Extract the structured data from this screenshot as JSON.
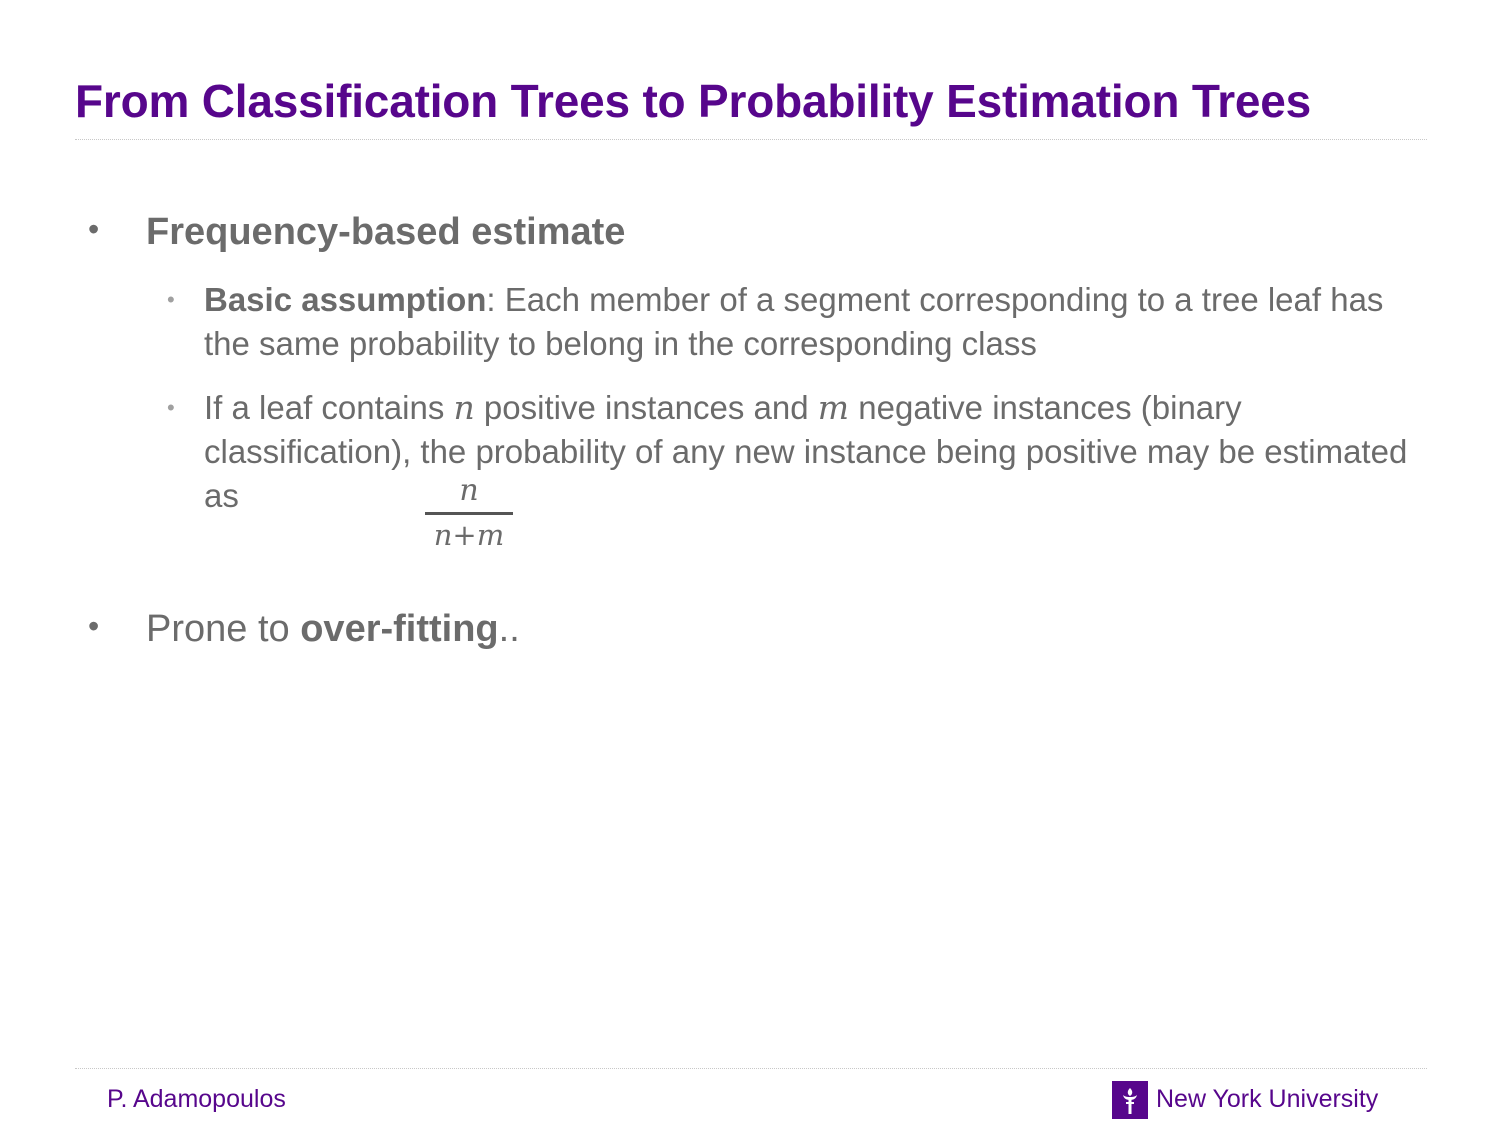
{
  "slide": {
    "title": "From Classification Trees to Probability Estimation Trees"
  },
  "bullets": {
    "b1": {
      "marker": "•",
      "label": "Frequency-based estimate"
    },
    "b1_1": {
      "marker": "•",
      "bold": "Basic assumption",
      "text": ": Each member of a segment corresponding to a tree leaf has the same probability to belong in the corresponding class"
    },
    "b1_2": {
      "marker": "•",
      "t1": "If a leaf contains ",
      "var_n": "n",
      "t2": " positive instances and ",
      "var_m": "m",
      "t3": " negative instances (binary classification), the probability of any new instance being positive may be estimated as",
      "frac_num": "n",
      "frac_den": "n+m"
    },
    "b2": {
      "marker": "•",
      "t1": "Prone to ",
      "bold": "over-fitting",
      "t2": ".."
    }
  },
  "footer": {
    "author": "P. Adamopoulos",
    "university": "New York University",
    "logo_icon": "nyu-torch-icon",
    "brand_color": "#57068c"
  }
}
